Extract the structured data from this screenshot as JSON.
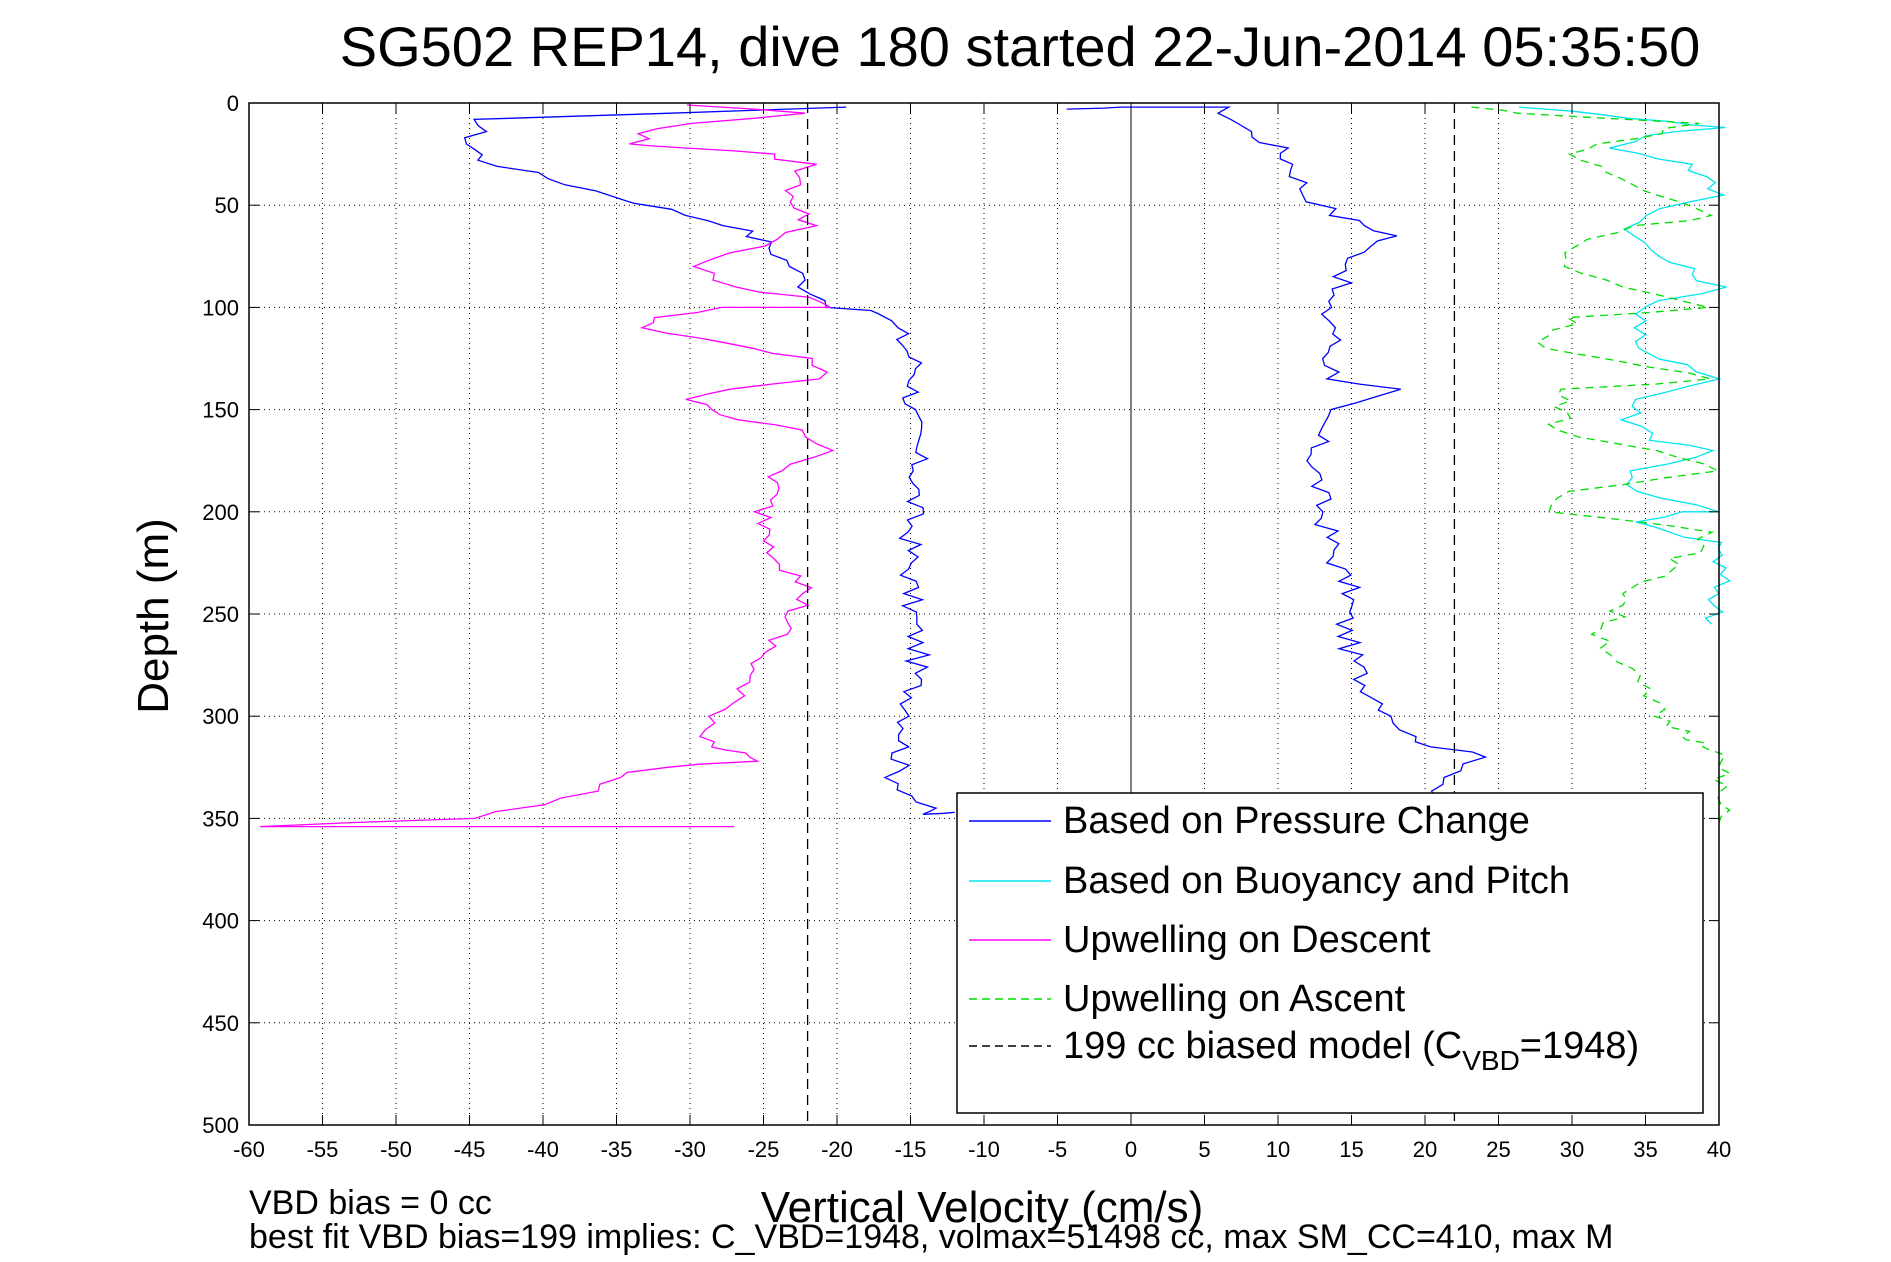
{
  "chart_data": {
    "type": "line",
    "title": "SG502 REP14, dive 180 started 22-Jun-2014 05:35:50",
    "xlabel": "Vertical Velocity (cm/s)",
    "ylabel": "Depth (m)",
    "xlim": [
      -60,
      40
    ],
    "ylim": [
      0,
      500
    ],
    "y_reversed": true,
    "grid": true,
    "xticks": [
      "-60",
      "-55",
      "-50",
      "-45",
      "-40",
      "-35",
      "-30",
      "-25",
      "-20",
      "-15",
      "-10",
      "-5",
      "0",
      "5",
      "10",
      "15",
      "20",
      "25",
      "30",
      "35",
      "40"
    ],
    "yticks": [
      "0",
      "50",
      "100",
      "150",
      "200",
      "250",
      "300",
      "350",
      "400",
      "450",
      "500"
    ],
    "legend_placement": "bottom-right",
    "legend": [
      {
        "label": "Based on Pressure Change",
        "color": "#0000ff",
        "dash": "solid"
      },
      {
        "label": "Based on Buoyancy and Pitch",
        "color": "#00e5ee",
        "dash": "solid"
      },
      {
        "label": "Upwelling on Descent",
        "color": "#ff00ff",
        "dash": "solid"
      },
      {
        "label": "Upwelling on Ascent",
        "color": "#00dd00",
        "dash": "dashed"
      },
      {
        "label": "199 cc biased model (C",
        "sub": "VBD",
        "suffix": "=1948)",
        "color": "#000000",
        "dash": "dashed"
      }
    ],
    "series": [
      {
        "name": "Based on Pressure Change",
        "color": "#0000ff",
        "x": [
          -20,
          -44,
          -45,
          -44,
          -38,
          -30,
          -27,
          -25,
          -23,
          -22,
          -20,
          -17,
          -16,
          -14.5,
          -15,
          -14.5,
          -15,
          -15,
          -14.5,
          -15,
          -16,
          -14,
          -14,
          -12,
          -5,
          0,
          6,
          7,
          8,
          10,
          11,
          12,
          14,
          16,
          18,
          16,
          13,
          14,
          13.5,
          14,
          18,
          13,
          12.5,
          13,
          14,
          15,
          14.5,
          15,
          16,
          18,
          19,
          21,
          24,
          22,
          20,
          19
        ],
        "y": [
          2,
          8,
          20,
          28,
          40,
          55,
          60,
          68,
          80,
          90,
          100,
          103,
          110,
          130,
          150,
          180,
          210,
          240,
          270,
          300,
          330,
          345,
          348,
          347,
          3,
          2,
          2,
          8,
          14,
          22,
          30,
          45,
          55,
          60,
          65,
          70,
          100,
          110,
          125,
          135,
          140,
          150,
          175,
          200,
          225,
          240,
          255,
          270,
          285,
          300,
          310,
          315,
          320,
          330,
          340,
          350
        ]
      },
      {
        "name": "Based on Buoyancy and Pitch",
        "color": "#00e5ee",
        "x": [
          27,
          32,
          37,
          40,
          35,
          33,
          38,
          40,
          35,
          34,
          36,
          40,
          35,
          34.5,
          34,
          38,
          40,
          34.5,
          34,
          36,
          40,
          34.5,
          34,
          40,
          37,
          35,
          36,
          40,
          40,
          39.5
        ],
        "y": [
          2,
          6,
          9,
          12,
          16,
          22,
          30,
          45,
          55,
          65,
          75,
          90,
          100,
          110,
          120,
          128,
          135,
          145,
          155,
          165,
          170,
          180,
          190,
          200,
          200,
          205,
          210,
          215,
          240,
          255
        ]
      },
      {
        "name": "Upwelling on Descent",
        "color": "#ff00ff",
        "x": [
          -30,
          -22,
          -30,
          -33,
          -34,
          -30,
          -25,
          -22,
          -23,
          -22,
          -25,
          -30,
          -27,
          -22,
          -21,
          -28,
          -32,
          -33,
          -30,
          -26,
          -22,
          -21,
          -27,
          -30,
          -29,
          -26,
          -22,
          -21,
          -24,
          -25,
          -24,
          -22,
          -24,
          -26,
          -27,
          -28,
          -29,
          -28,
          -26,
          -26,
          -32,
          -35,
          -38,
          -45,
          -60,
          -27
        ],
        "y": [
          1,
          5,
          10,
          15,
          20,
          22,
          25,
          30,
          40,
          60,
          70,
          80,
          90,
          95,
          100,
          100,
          105,
          110,
          115,
          120,
          125,
          135,
          140,
          145,
          150,
          155,
          160,
          170,
          180,
          200,
          220,
          240,
          260,
          280,
          290,
          300,
          310,
          315,
          318,
          322,
          325,
          330,
          340,
          350,
          354,
          354
        ]
      },
      {
        "name": "Upwelling on Ascent",
        "color": "#00dd00",
        "x": [
          23,
          27,
          38,
          36,
          32,
          30,
          34,
          40,
          35,
          30,
          29,
          33,
          40,
          30,
          28,
          40,
          30,
          29,
          35,
          40,
          30,
          29,
          40,
          38,
          34,
          32,
          33,
          34,
          35,
          36,
          37,
          38,
          39,
          40,
          40
        ],
        "y": [
          2,
          5,
          10,
          15,
          20,
          25,
          40,
          55,
          60,
          70,
          80,
          90,
          100,
          105,
          120,
          135,
          140,
          160,
          170,
          180,
          190,
          200,
          210,
          220,
          240,
          260,
          270,
          280,
          290,
          300,
          305,
          310,
          313,
          316,
          352
        ]
      },
      {
        "name": "199 cc biased model (CVBD=1948)",
        "color": "#000000",
        "x": [
          -22,
          -22
        ],
        "y": [
          0,
          500
        ],
        "mirror_x": [
          22,
          22
        ]
      }
    ],
    "reference_lines": [
      {
        "x": 0,
        "color": "#000000"
      }
    ]
  },
  "notes": {
    "line1": "VBD bias = 0 cc",
    "line2": "best fit VBD bias=199 implies: C_VBD=1948, volmax=51498 cc, max SM_CC=410, max M"
  }
}
